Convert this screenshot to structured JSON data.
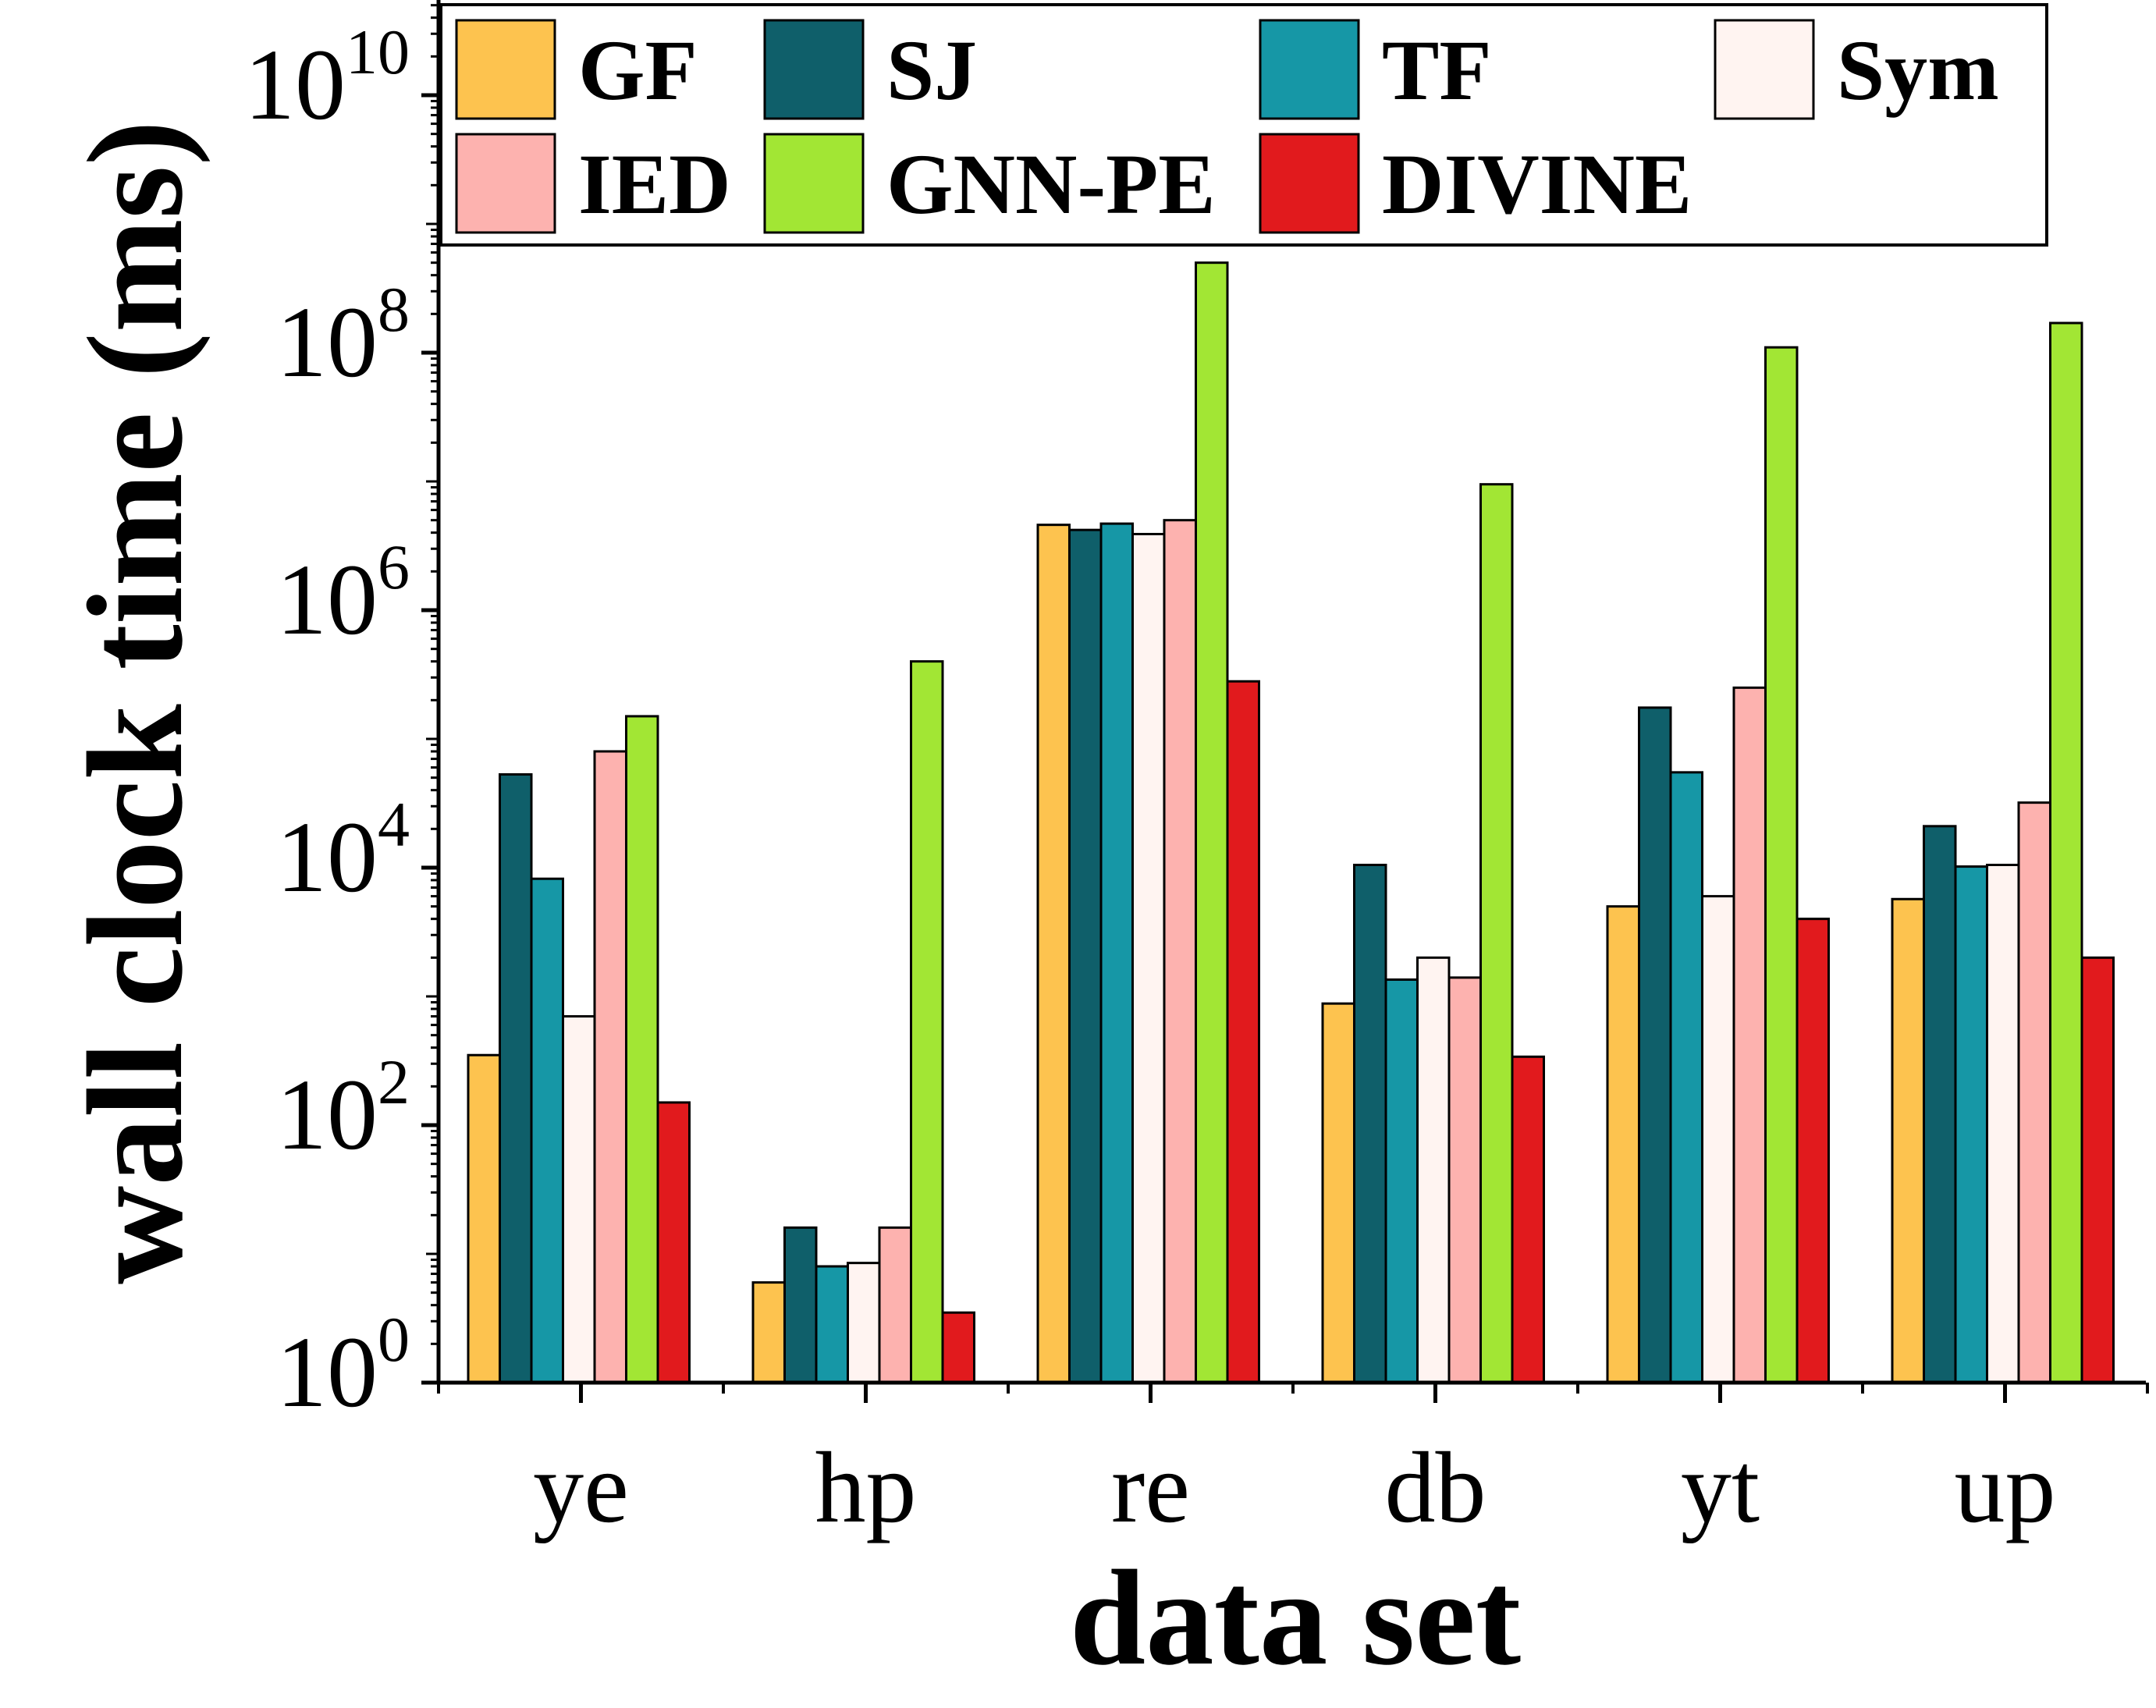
{
  "chart_data": {
    "type": "bar",
    "title": "",
    "xlabel": "data set",
    "ylabel": "wall clock time (ms)",
    "yscale": "log",
    "ylim": [
      1,
      50000000000
    ],
    "y_ticks": [
      {
        "value": 1,
        "base": "10",
        "exp": "0"
      },
      {
        "value": 100,
        "base": "10",
        "exp": "2"
      },
      {
        "value": 10000,
        "base": "10",
        "exp": "4"
      },
      {
        "value": 1000000,
        "base": "10",
        "exp": "6"
      },
      {
        "value": 100000000,
        "base": "10",
        "exp": "8"
      },
      {
        "value": 10000000000,
        "base": "10",
        "exp": "10"
      }
    ],
    "categories": [
      "ye",
      "hp",
      "re",
      "db",
      "yt",
      "up"
    ],
    "legend_position": "top",
    "series": [
      {
        "name": "GF",
        "color": "#FDC34F",
        "values": [
          350,
          6,
          4600000,
          880,
          5000,
          5700
        ]
      },
      {
        "name": "SJ",
        "color": "#0F5F6A",
        "values": [
          53000,
          16,
          4200000,
          10500,
          175000,
          21000
        ]
      },
      {
        "name": "TF",
        "color": "#1697A6",
        "values": [
          8200,
          8,
          4700000,
          1350,
          55000,
          10200
        ]
      },
      {
        "name": "Sym",
        "color": "#FFF4F1",
        "values": [
          700,
          8.5,
          3900000,
          2000,
          6000,
          10500
        ]
      },
      {
        "name": "IED",
        "color": "#FDB2AF",
        "values": [
          80000,
          16,
          5000000,
          1400,
          250000,
          32000
        ]
      },
      {
        "name": "GNN-PE",
        "color": "#A2E634",
        "values": [
          150000,
          400000,
          500000000,
          9500000,
          110000000,
          170000000
        ]
      },
      {
        "name": "DIVINE",
        "color": "#E11A1D",
        "values": [
          150,
          3.5,
          280000,
          340,
          4000,
          2000
        ]
      }
    ]
  }
}
